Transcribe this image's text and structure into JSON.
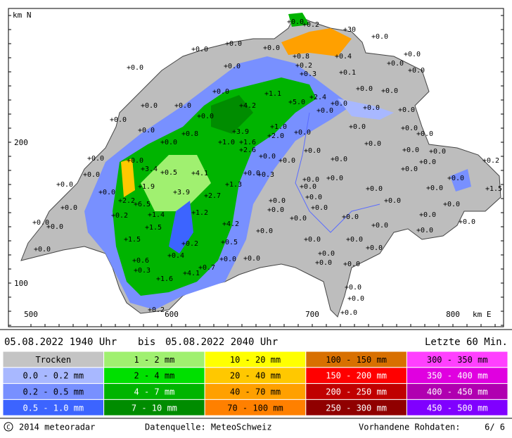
{
  "map": {
    "y_axis_label": "km N",
    "x_axis_label": "km E",
    "yticks": [
      "200",
      "100"
    ],
    "xticks": [
      "500",
      "600",
      "700",
      "800"
    ],
    "stations": [
      "+0.0",
      "+0.2",
      "+30",
      "+0.0",
      "+0.0",
      "+0.0",
      "+0.0",
      "+0.8",
      "+0.4",
      "+0.0",
      "+0.2",
      "+0.0",
      "+0.0",
      "+0.0",
      "+0.3",
      "+0.1",
      "+0.0",
      "+1.1",
      "+0.0",
      "+0.0",
      "+2.4",
      "+0.0",
      "+4.2",
      "+5.0",
      "+0.0",
      "+0.0",
      "+0.0",
      "+0.0",
      "+0.0",
      "+0.0",
      "+0.0",
      "+0.0",
      "+1.0",
      "+3.9",
      "+0.0",
      "+0.0",
      "+0.8",
      "+2.0",
      "+0.0",
      "+0.0",
      "+0.0",
      "+1.0",
      "+1.6",
      "+0.0",
      "+0.0",
      "+2.6",
      "+0.0",
      "+0.0",
      "+0.0",
      "+0.0",
      "+0.0",
      "+0.0",
      "+0.0",
      "+0.0",
      "+0.0",
      "+0.2",
      "+3.4",
      "+0.5",
      "+4.1",
      "+0.0",
      "+0.3",
      "+0.0",
      "+0.0",
      "+0.0",
      "+0.0",
      "+0.0",
      "+0.0",
      "+1.9",
      "+1.3",
      "+0.0",
      "+0.0",
      "+0.0",
      "+3.9",
      "+2.7",
      "+0.0",
      "+1.5",
      "+2.2",
      "+6.5",
      "+0.0",
      "+0.0",
      "+0.0",
      "+0.0",
      "+1.4",
      "+1.2",
      "+0.0",
      "+0.0",
      "+0.0",
      "+0.2",
      "+4.2",
      "+0.0",
      "+0.0",
      "+0.0",
      "+0.0",
      "+1.5",
      "+0.0",
      "+0.0",
      "+0.0",
      "+0.0",
      "+0.0",
      "+1.5",
      "+0.5",
      "+0.2",
      "+0.0",
      "+0.0",
      "+0.0",
      "+0.0",
      "+0.0",
      "+0.4",
      "+0.6",
      "+0.0",
      "+0.0",
      "+0.0",
      "+0.0",
      "+0.7",
      "+0.3",
      "+4.1",
      "+1.6",
      "+0.0",
      "+0.0",
      "+0.2",
      "+0.0"
    ]
  },
  "period": {
    "from": "05.08.2022 1940 Uhr",
    "between": "bis",
    "to": "05.08.2022 2040 Uhr",
    "window": "Letzte 60 Min."
  },
  "legend": [
    {
      "label": "Trocken",
      "color": "#c4c4c4"
    },
    {
      "label": "1 - 2 mm",
      "color": "#a0f070"
    },
    {
      "label": "10 - 20 mm",
      "color": "#ffff00"
    },
    {
      "label": "100 - 150 mm",
      "color": "#d87000"
    },
    {
      "label": "300 - 350 mm",
      "color": "#ff40ff"
    },
    {
      "label": "0.0 - 0.2 mm",
      "color": "#a8b8ff"
    },
    {
      "label": "2 - 4 mm",
      "color": "#00e000"
    },
    {
      "label": "20 - 40 mm",
      "color": "#ffc800"
    },
    {
      "label": "150 - 200 mm",
      "color": "#ff0000"
    },
    {
      "label": "350 - 400 mm",
      "color": "#e000e0"
    },
    {
      "label": "0.2 - 0.5 mm",
      "color": "#7890ff"
    },
    {
      "label": "4 - 7 mm",
      "color": "#00b400"
    },
    {
      "label": "40 - 70 mm",
      "color": "#ffa000"
    },
    {
      "label": "200 - 250 mm",
      "color": "#c00000"
    },
    {
      "label": "400 - 450 mm",
      "color": "#b000b0"
    },
    {
      "label": "0.5 - 1.0 mm",
      "color": "#3c64ff"
    },
    {
      "label": "7 - 10 mm",
      "color": "#008c00"
    },
    {
      "label": "70 - 100 mm",
      "color": "#ff8000"
    },
    {
      "label": "250 - 300 mm",
      "color": "#900000"
    },
    {
      "label": "450 - 500 mm",
      "color": "#8000ff"
    }
  ],
  "footer": {
    "copyright": "2014  meteoradar",
    "source": "Datenquelle: MeteoSchweiz",
    "raw": "Vorhandene Rohdaten:",
    "raw_count": "6/  6"
  }
}
